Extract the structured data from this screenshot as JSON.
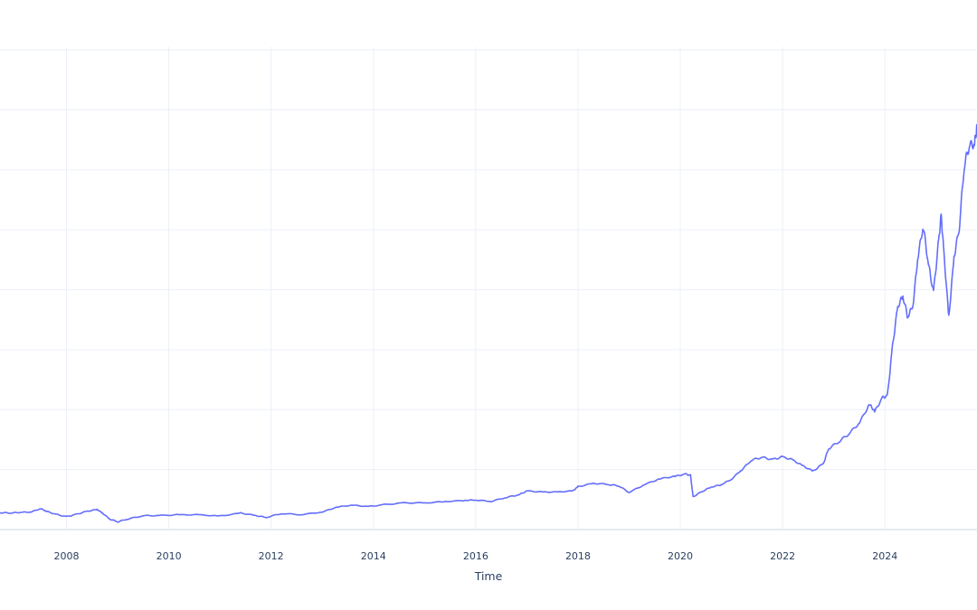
{
  "chart_data": {
    "type": "line",
    "title": "",
    "xlabel": "Time",
    "ylabel": "",
    "x_tick_labels": [
      "2008",
      "2010",
      "2012",
      "2014",
      "2016",
      "2018",
      "2020",
      "2022",
      "2024"
    ],
    "x_ticks": [
      2008,
      2010,
      2012,
      2014,
      2016,
      2018,
      2020,
      2022,
      2024
    ],
    "xlim": [
      2006.7,
      2025.8
    ],
    "ylim": [
      0,
      8.5
    ],
    "y_grid": [
      0,
      1,
      2,
      3,
      4,
      5,
      6,
      7,
      8
    ],
    "grid": true,
    "line_color": "#636efa",
    "series": [
      {
        "x": [
          2006.7,
          2006.9,
          2007.1,
          2007.3,
          2007.5,
          2007.6,
          2007.8,
          2008.0,
          2008.2,
          2008.4,
          2008.6,
          2008.7,
          2008.85,
          2009.0,
          2009.2,
          2009.5,
          2009.8,
          2010.2,
          2010.6,
          2011.0,
          2011.4,
          2011.7,
          2011.9,
          2012.2,
          2012.6,
          2013.0,
          2013.3,
          2013.6,
          2013.9,
          2014.2,
          2014.6,
          2015.0,
          2015.4,
          2015.8,
          2016.0,
          2016.3,
          2016.6,
          2016.85,
          2017.0,
          2017.3,
          2017.6,
          2017.9,
          2018.0,
          2018.3,
          2018.6,
          2018.8,
          2019.0,
          2019.3,
          2019.6,
          2019.9,
          2020.1,
          2020.2,
          2020.25,
          2020.4,
          2020.6,
          2020.8,
          2021.0,
          2021.2,
          2021.4,
          2021.6,
          2021.8,
          2022.0,
          2022.2,
          2022.4,
          2022.6,
          2022.8,
          2022.9,
          2023.1,
          2023.3,
          2023.5,
          2023.7,
          2023.8,
          2023.95,
          2024.05,
          2024.15,
          2024.25,
          2024.35,
          2024.45,
          2024.55,
          2024.65,
          2024.75,
          2024.85,
          2024.95,
          2025.05,
          2025.1,
          2025.15,
          2025.25,
          2025.35,
          2025.45,
          2025.55,
          2025.65,
          2025.75,
          2025.8
        ],
        "y": [
          0.28,
          0.27,
          0.29,
          0.3,
          0.35,
          0.3,
          0.25,
          0.22,
          0.26,
          0.3,
          0.33,
          0.28,
          0.18,
          0.13,
          0.17,
          0.23,
          0.24,
          0.25,
          0.24,
          0.22,
          0.28,
          0.24,
          0.2,
          0.26,
          0.25,
          0.3,
          0.38,
          0.4,
          0.38,
          0.42,
          0.45,
          0.44,
          0.46,
          0.49,
          0.5,
          0.47,
          0.53,
          0.58,
          0.65,
          0.63,
          0.62,
          0.64,
          0.72,
          0.78,
          0.75,
          0.72,
          0.62,
          0.76,
          0.85,
          0.88,
          0.92,
          0.91,
          0.55,
          0.62,
          0.7,
          0.75,
          0.85,
          1.0,
          1.15,
          1.2,
          1.18,
          1.22,
          1.15,
          1.05,
          0.98,
          1.12,
          1.35,
          1.45,
          1.6,
          1.8,
          2.1,
          1.95,
          2.18,
          2.25,
          3.1,
          3.7,
          3.85,
          3.55,
          3.8,
          4.6,
          5.0,
          4.4,
          4.0,
          4.85,
          5.2,
          4.6,
          3.55,
          4.6,
          5.0,
          6.0,
          6.4,
          6.5,
          6.75
        ]
      }
    ]
  }
}
